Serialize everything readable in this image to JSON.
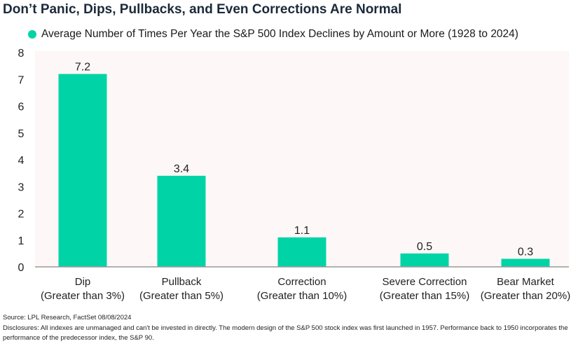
{
  "title": "Don’t Panic, Dips, Pullbacks, and Even Corrections Are Normal",
  "colors": {
    "bar": "#00d4a6",
    "plot_bg": "#fdf7f7",
    "axis": "#999999"
  },
  "chart_data": {
    "type": "bar",
    "title": "Don’t Panic, Dips, Pullbacks, and Even Corrections Are Normal",
    "categories": [
      [
        "Dip",
        "(Greater than 3%)"
      ],
      [
        "Pullback",
        "(Greater than 5%)"
      ],
      [
        "Correction",
        "(Greater than 10%)"
      ],
      [
        "Severe Correction",
        "(Greater than 15%)"
      ],
      [
        "Bear Market",
        "(Greater than 20%)"
      ]
    ],
    "series": [
      {
        "name": "Average Number of Times Per Year the S&P 500 Index Declines by Amount or More (1928 to 2024)",
        "values": [
          7.2,
          3.4,
          1.1,
          0.5,
          0.3
        ]
      }
    ],
    "data_labels": [
      "7.2",
      "3.4",
      "1.1",
      "0.5",
      "0.3"
    ],
    "ylim": [
      0,
      8
    ],
    "yticks": [
      "0",
      "1",
      "2",
      "3",
      "4",
      "5",
      "6",
      "7",
      "8"
    ],
    "grid": false,
    "legend": "top"
  },
  "footer": {
    "source": "Source: LPL Research, FactSet 08/08/2024",
    "disclosures": "Disclosures: All indexes are unmanaged and can't be invested in directly. The modern design of the S&P 500 stock index was first launched in 1957. Performance back to 1950 incorporates the performance of the predecessor index, the S&P 90."
  }
}
